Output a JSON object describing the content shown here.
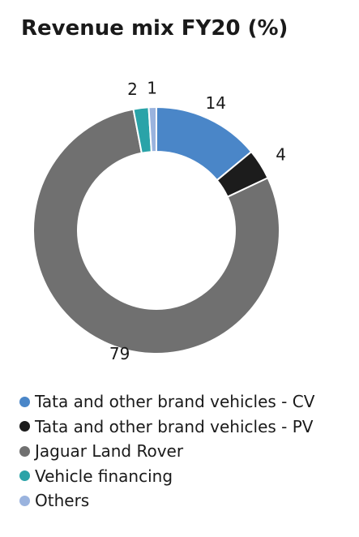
{
  "chart_data": {
    "type": "pie",
    "title": "Revenue mix FY20 (%)",
    "categories": [
      "Tata and other brand vehicles - CV",
      "Tata and other brand vehicles - PV",
      "Jaguar Land Rover",
      "Vehicle financing",
      "Others"
    ],
    "values": [
      14,
      4,
      79,
      2,
      1
    ],
    "colors": [
      "#4a86c8",
      "#1c1c1c",
      "#707070",
      "#2aa3a8",
      "#9ab3de"
    ],
    "donut": true,
    "legend_position": "bottom",
    "grid": false
  }
}
